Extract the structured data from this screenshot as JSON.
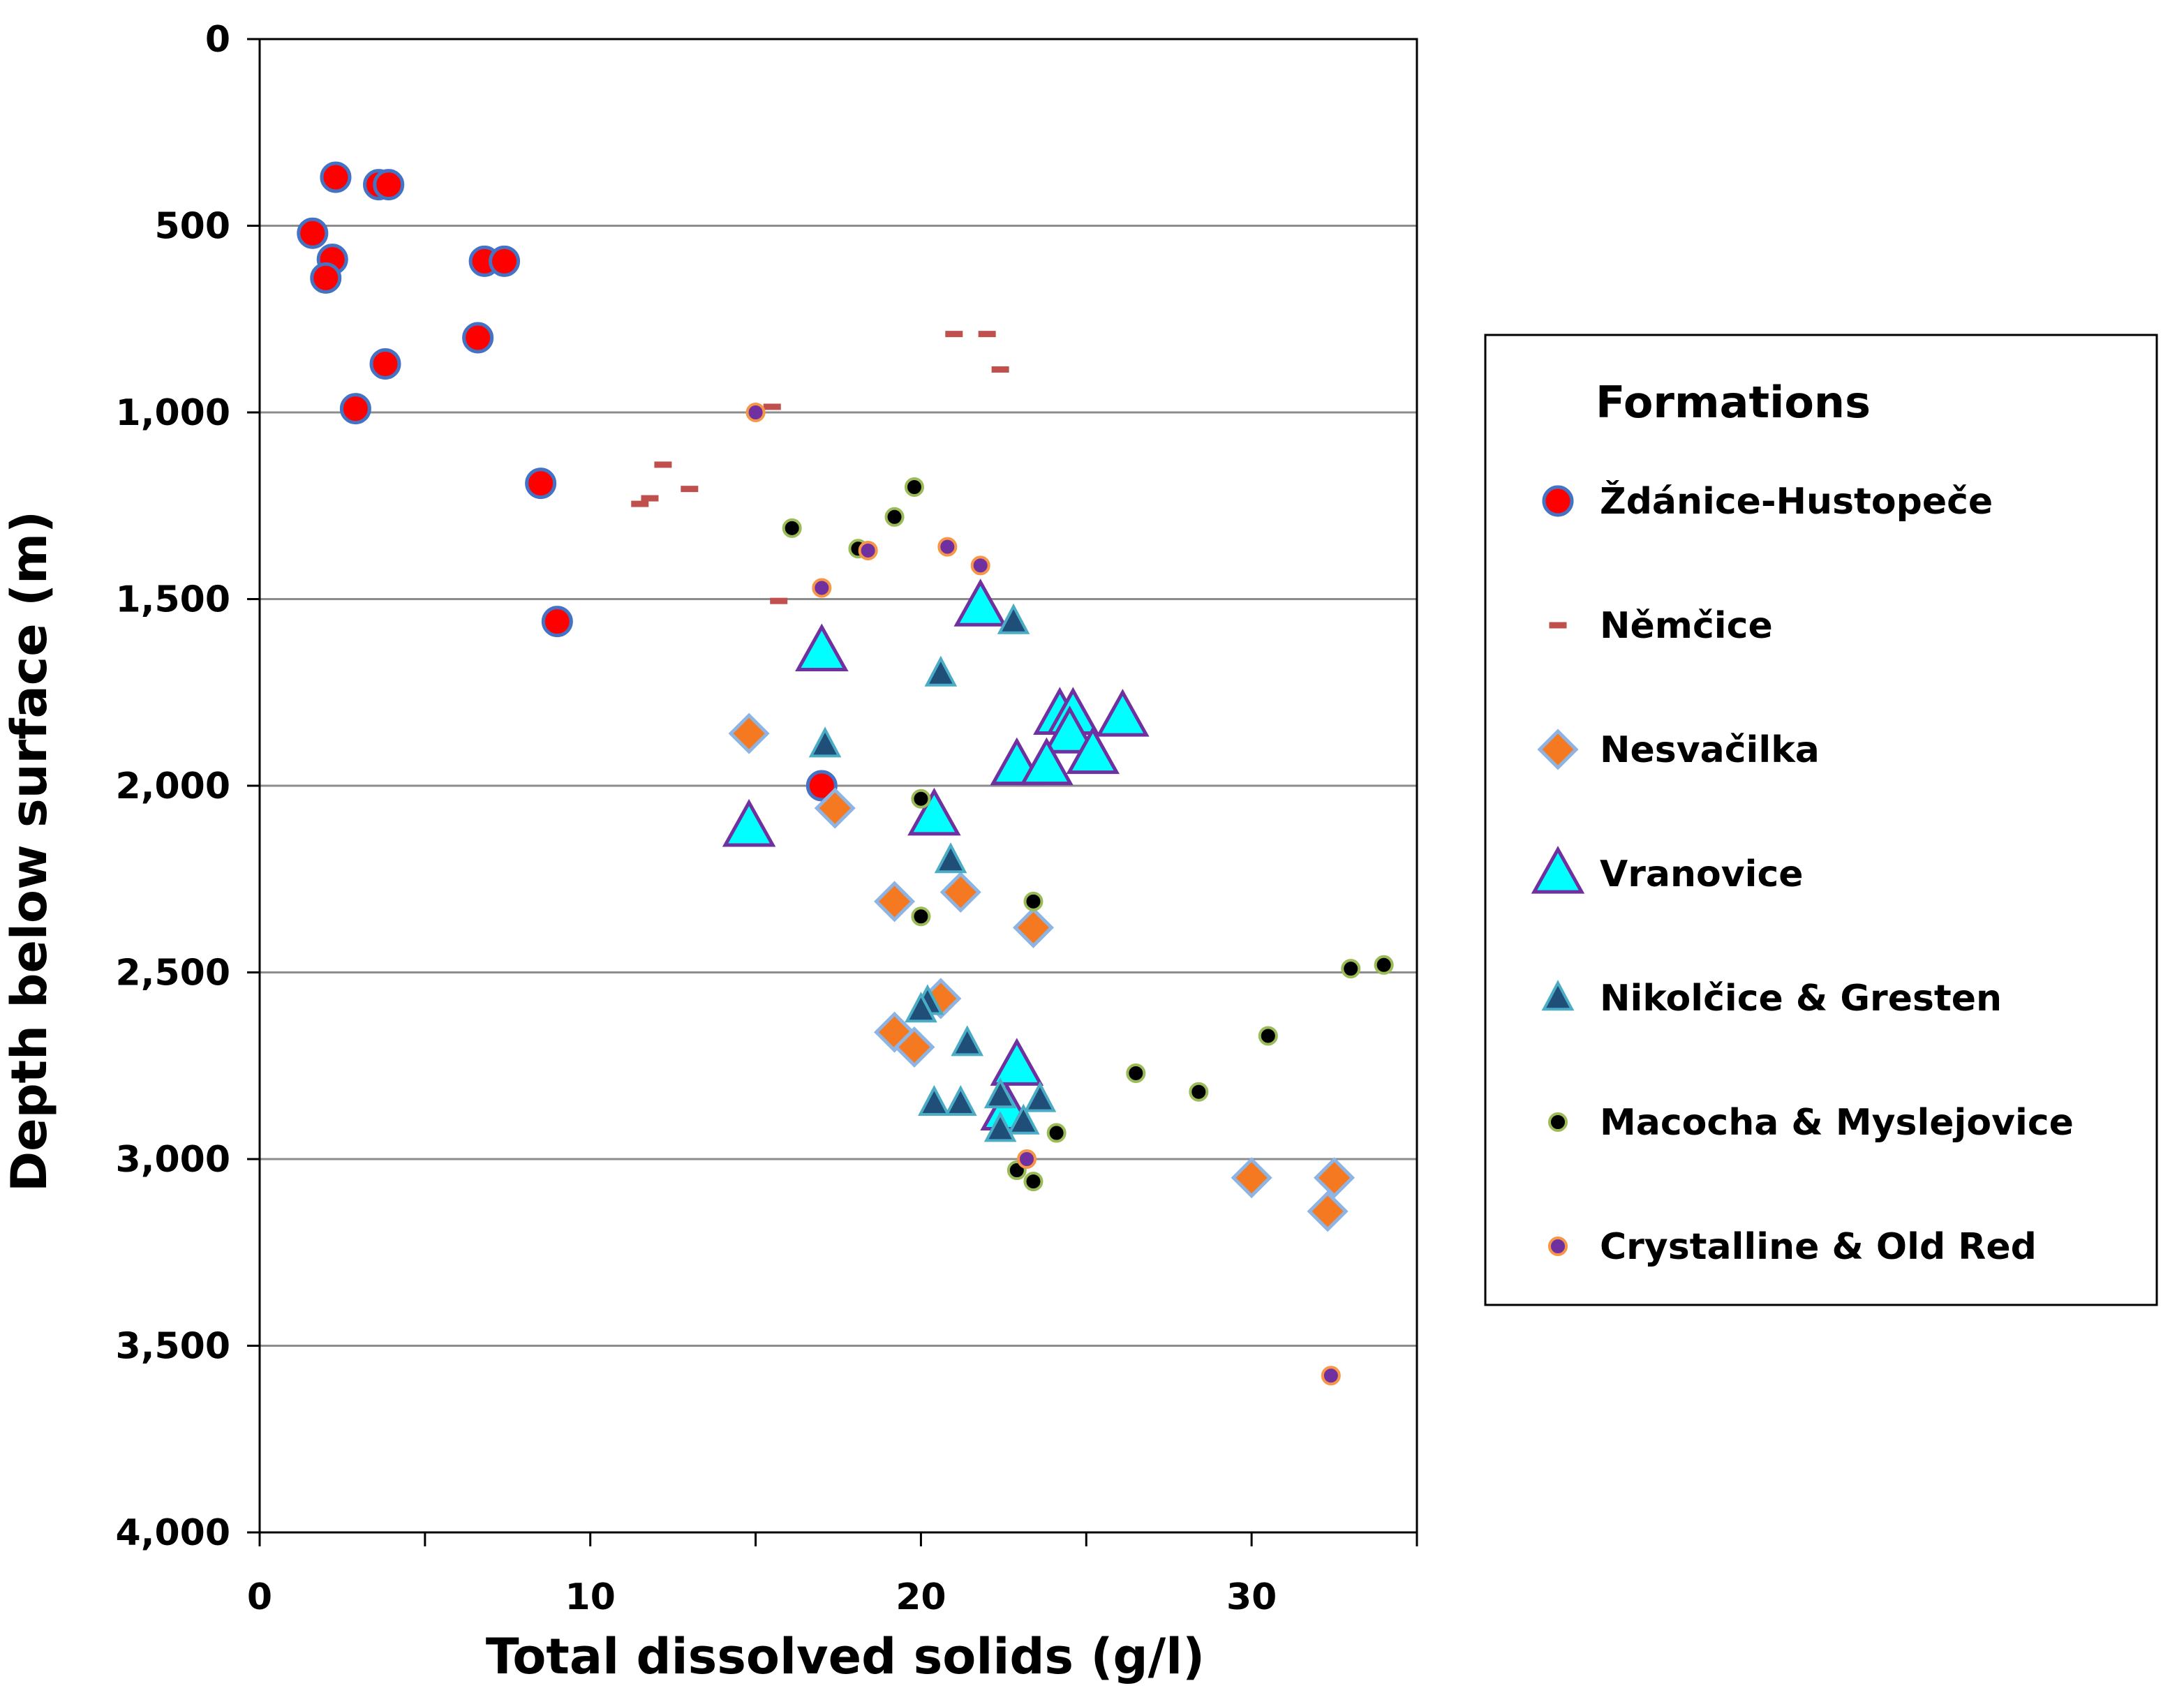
{
  "chart_data": {
    "type": "scatter",
    "title": "",
    "xlabel": "Total dissolved solids (g/l)",
    "ylabel": "Depth below surface (m)",
    "xlim": [
      0,
      35
    ],
    "ylim": [
      0,
      4000
    ],
    "y_inverted": true,
    "x_ticks": [
      0,
      10,
      20,
      30
    ],
    "x_tick_labels": [
      "0",
      "10",
      "20",
      "30"
    ],
    "y_ticks": [
      0,
      500,
      1000,
      1500,
      2000,
      2500,
      3000,
      3500,
      4000
    ],
    "y_tick_labels": [
      "0",
      "500",
      "1,000",
      "1,500",
      "2,000",
      "2,500",
      "3,000",
      "3,500",
      "4,000"
    ],
    "grid": "horizontal",
    "legend": {
      "title": "Formations",
      "position": "right"
    },
    "series": [
      {
        "name": "Ždánice-Hustopeče",
        "marker": "circle",
        "size": "large",
        "fill": "#ff0000",
        "stroke": "#4472c4",
        "points": [
          [
            2.3,
            370
          ],
          [
            3.6,
            390
          ],
          [
            3.9,
            390
          ],
          [
            1.6,
            520
          ],
          [
            2.2,
            590
          ],
          [
            2.0,
            640
          ],
          [
            6.8,
            595
          ],
          [
            7.4,
            595
          ],
          [
            6.6,
            800
          ],
          [
            3.8,
            870
          ],
          [
            2.9,
            990
          ],
          [
            8.5,
            1190
          ],
          [
            9.0,
            1560
          ],
          [
            17.0,
            2000
          ]
        ]
      },
      {
        "name": "Němčice",
        "marker": "dash",
        "size": "small",
        "fill": "#c0504d",
        "stroke": "#c0504d",
        "points": [
          [
            21.0,
            790
          ],
          [
            22.0,
            790
          ],
          [
            22.4,
            885
          ],
          [
            15.5,
            985
          ],
          [
            12.2,
            1140
          ],
          [
            11.8,
            1230
          ],
          [
            11.5,
            1245
          ],
          [
            13.0,
            1205
          ],
          [
            15.7,
            1505
          ]
        ]
      },
      {
        "name": "Nesvačilka",
        "marker": "diamond",
        "size": "large",
        "fill": "#f47920",
        "stroke": "#8eb4e3",
        "points": [
          [
            14.8,
            1860
          ],
          [
            17.4,
            2060
          ],
          [
            21.2,
            2285
          ],
          [
            19.2,
            2310
          ],
          [
            23.4,
            2380
          ],
          [
            20.6,
            2570
          ],
          [
            19.2,
            2660
          ],
          [
            19.8,
            2700
          ],
          [
            30.0,
            3050
          ],
          [
            32.5,
            3050
          ],
          [
            32.3,
            3140
          ]
        ]
      },
      {
        "name": "Vranovice",
        "marker": "triangle",
        "size": "large",
        "fill": "#00ffff",
        "stroke": "#7030a0",
        "points": [
          [
            21.8,
            1520
          ],
          [
            17.0,
            1640
          ],
          [
            24.2,
            1810
          ],
          [
            24.6,
            1810
          ],
          [
            26.1,
            1815
          ],
          [
            24.5,
            1860
          ],
          [
            22.9,
            1945
          ],
          [
            23.8,
            1945
          ],
          [
            25.2,
            1915
          ],
          [
            14.8,
            2110
          ],
          [
            20.4,
            2080
          ],
          [
            22.9,
            2750
          ],
          [
            22.6,
            2870
          ]
        ]
      },
      {
        "name": "Nikolčice & Gresten",
        "marker": "triangle",
        "size": "small",
        "fill": "#1f4e79",
        "stroke": "#4bacc6",
        "points": [
          [
            22.8,
            1560
          ],
          [
            20.6,
            1700
          ],
          [
            17.1,
            1890
          ],
          [
            20.9,
            2200
          ],
          [
            20.2,
            2580
          ],
          [
            20.0,
            2600
          ],
          [
            21.4,
            2690
          ],
          [
            20.4,
            2850
          ],
          [
            21.2,
            2850
          ],
          [
            22.4,
            2830
          ],
          [
            23.6,
            2840
          ],
          [
            23.1,
            2900
          ],
          [
            22.4,
            2920
          ]
        ]
      },
      {
        "name": "Macocha & Myslejovice",
        "marker": "circle",
        "size": "small",
        "fill": "#000000",
        "stroke": "#9bbb59",
        "points": [
          [
            19.8,
            1200
          ],
          [
            19.2,
            1280
          ],
          [
            16.1,
            1310
          ],
          [
            18.1,
            1365
          ],
          [
            20.0,
            2035
          ],
          [
            23.4,
            2310
          ],
          [
            20.0,
            2350
          ],
          [
            33.0,
            2490
          ],
          [
            34.0,
            2480
          ],
          [
            30.5,
            2670
          ],
          [
            26.5,
            2770
          ],
          [
            28.4,
            2820
          ],
          [
            24.1,
            2930
          ],
          [
            22.9,
            3030
          ],
          [
            23.4,
            3060
          ]
        ]
      },
      {
        "name": "Crystalline & Old Red",
        "marker": "circle",
        "size": "small",
        "fill": "#7030a0",
        "stroke": "#f79646",
        "points": [
          [
            15.0,
            1000
          ],
          [
            17.0,
            1470
          ],
          [
            18.4,
            1370
          ],
          [
            20.8,
            1360
          ],
          [
            21.8,
            1410
          ],
          [
            23.2,
            3000
          ],
          [
            32.4,
            3580
          ]
        ]
      }
    ]
  }
}
